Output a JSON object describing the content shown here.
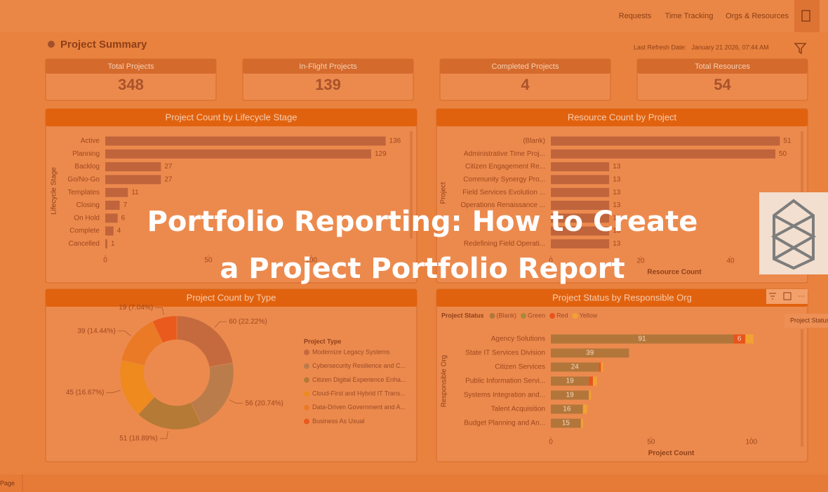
{
  "nav": {
    "links": [
      "Requests",
      "Time Tracking",
      "Orgs & Resources"
    ]
  },
  "header": {
    "title": "Project Summary",
    "refresh": "Last Refresh Date:   January 21 2026, 07:44 AM"
  },
  "kpis": [
    {
      "label": "Total Projects",
      "value": 348
    },
    {
      "label": "In-Flight Projects",
      "value": 139
    },
    {
      "label": "Completed Projects",
      "value": 4
    },
    {
      "label": "Total Resources",
      "value": 54
    }
  ],
  "chart_data": [
    {
      "type": "bar",
      "orientation": "horizontal",
      "title": "Project Count by Lifecycle Stage",
      "ylabel": "Lifecycle Stage",
      "categories": [
        "Active",
        "Planning",
        "Backlog",
        "Go/No-Go",
        "Templates",
        "Closing",
        "On Hold",
        "Complete",
        "Cancelled"
      ],
      "values": [
        136,
        129,
        27,
        27,
        11,
        7,
        6,
        4,
        1
      ],
      "color": "#c0643c",
      "xlim": [
        0,
        145
      ],
      "xticks": [
        0,
        50,
        100
      ]
    },
    {
      "type": "bar",
      "orientation": "horizontal",
      "title": "Resource Count by Project",
      "ylabel": "Project",
      "xlabel": "Resource Count",
      "categories": [
        "(Blank)",
        "Administrative Time Proj...",
        "Citizen Engagement Re...",
        "Community Synergy Pro...",
        "Field Services Evolution ...",
        "Operations Renaissance ...",
        null,
        null,
        "Redefining Field Operati..."
      ],
      "values": [
        51,
        50,
        13,
        13,
        13,
        13,
        13,
        13,
        13
      ],
      "color": "#c0643c",
      "xlim": [
        0,
        55
      ],
      "xticks": [
        0,
        20,
        40
      ]
    },
    {
      "type": "pie",
      "donut": true,
      "title": "Project Count by Type",
      "legend_title": "Project Type",
      "categories": [
        "Modernize Legacy Systems",
        "Cybersecurity Resilience and C...",
        "Citizen Digital Experience Enha...",
        "Cloud-First and Hybrid IT Trans...",
        "Data-Driven Government and A...",
        "Business As Usual"
      ],
      "values": [
        60,
        56,
        51,
        45,
        39,
        19
      ],
      "value_labels": [
        "60 (22.22%)",
        "56 (20.74%)",
        "51 (18.89%)",
        "45 (16.67%)",
        "39 (14.44%)",
        "19 (7.04%)"
      ],
      "colors": [
        "#c46a3e",
        "#bb7c4c",
        "#b57a36",
        "#ee8a1e",
        "#ea7a26",
        "#ea5a1c"
      ]
    },
    {
      "type": "stacked_bar",
      "orientation": "horizontal",
      "title": "Project Status by Responsible Org",
      "legend_title": "Project Status",
      "xlabel": "Project Count",
      "ylabel": "Responsible Org",
      "categories": [
        "Agency Solutions",
        "State IT Services Division",
        "Citizen Services",
        "Public Information Servi...",
        "Systems Integration and...",
        "Talent Acquisition",
        "Budget Planning and An..."
      ],
      "series": [
        {
          "name": "(Blank)",
          "color": "#b2763a",
          "values": [
            91,
            39,
            24,
            19,
            19,
            16,
            15
          ]
        },
        {
          "name": "Green",
          "color": "#a8883c",
          "values": [
            0,
            0,
            0,
            0,
            0,
            0,
            0
          ]
        },
        {
          "name": "Red",
          "color": "#e8541c",
          "values": [
            6,
            0,
            1,
            2,
            0,
            0,
            0
          ]
        },
        {
          "name": "Yellow",
          "color": "#f2a232",
          "values": [
            4,
            0,
            1,
            2,
            1,
            2,
            1
          ]
        }
      ],
      "xlim": [
        0,
        120
      ],
      "xticks": [
        0,
        50,
        100
      ]
    }
  ],
  "tooltip": "Project Status",
  "footer": {
    "page": "Page"
  },
  "overlay": {
    "title_lines": [
      "Portfolio Reporting: How to Create",
      "a Project Portfolio Report"
    ]
  }
}
